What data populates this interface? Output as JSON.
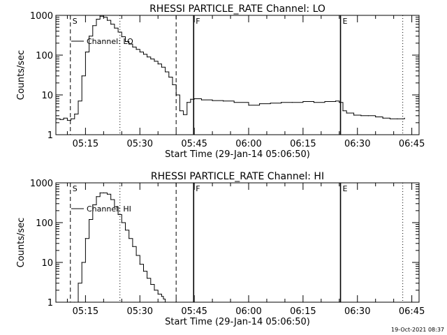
{
  "footer_timestamp": "19-Oct-2021 08:37",
  "chart_data": [
    {
      "type": "line",
      "title": "RHESSI PARTICLE_RATE Channel: LO",
      "xlabel": "Start Time (29-Jan-14 05:06:50)",
      "ylabel": "Counts/sec",
      "legend": "Channel: LO",
      "legend_position": "top-left",
      "y_scale": "log",
      "ylim": [
        1,
        1000
      ],
      "y_ticks": [
        1,
        10,
        100,
        1000
      ],
      "y_tick_labels": [
        "1",
        "10",
        "100",
        "1000"
      ],
      "xlim": [
        "05:06:50",
        "06:47:00"
      ],
      "x_ticks": [
        "05:15",
        "05:30",
        "05:45",
        "06:00",
        "06:15",
        "06:30",
        "06:45"
      ],
      "markers": [
        {
          "time": "05:10:50",
          "label": "S",
          "style": "dashed"
        },
        {
          "time": "05:24:30",
          "label": "",
          "style": "dotted"
        },
        {
          "time": "05:40:00",
          "label": "",
          "style": "dashed"
        },
        {
          "time": "05:44:50",
          "label": "F",
          "style": "solid"
        },
        {
          "time": "06:25:20",
          "label": "E",
          "style": "solid"
        },
        {
          "time": "06:42:30",
          "label": "",
          "style": "dotted"
        }
      ],
      "series": [
        {
          "name": "Channel: LO",
          "x": [
            "05:07:00",
            "05:08:00",
            "05:09:00",
            "05:10:00",
            "05:11:00",
            "05:12:00",
            "05:13:00",
            "05:14:00",
            "05:15:00",
            "05:16:00",
            "05:17:00",
            "05:18:00",
            "05:19:00",
            "05:20:00",
            "05:21:00",
            "05:22:00",
            "05:23:00",
            "05:24:00",
            "05:25:00",
            "05:26:00",
            "05:27:00",
            "05:28:00",
            "05:29:00",
            "05:30:00",
            "05:31:00",
            "05:32:00",
            "05:33:00",
            "05:34:00",
            "05:35:00",
            "05:36:00",
            "05:37:00",
            "05:38:00",
            "05:39:00",
            "05:40:00",
            "05:41:00",
            "05:42:00",
            "05:43:00",
            "05:44:00",
            "05:45:00",
            "05:47:00",
            "05:50:00",
            "05:53:00",
            "05:56:00",
            "06:00:00",
            "06:03:00",
            "06:06:00",
            "06:09:00",
            "06:12:00",
            "06:15:00",
            "06:18:00",
            "06:21:00",
            "06:24:00",
            "06:25:00",
            "06:26:00",
            "06:27:00",
            "06:29:00",
            "06:31:00",
            "06:33:00",
            "06:35:00",
            "06:37:00",
            "06:39:00",
            "06:41:00",
            "06:43:00"
          ],
          "y": [
            2.5,
            2.4,
            2.6,
            2.3,
            2.5,
            3.3,
            7,
            30,
            120,
            300,
            550,
            800,
            950,
            900,
            750,
            600,
            480,
            380,
            290,
            220,
            190,
            160,
            140,
            120,
            105,
            90,
            80,
            70,
            60,
            50,
            38,
            28,
            18,
            10,
            4,
            3.2,
            6.5,
            7.8,
            8,
            7.5,
            7.2,
            7,
            6.5,
            5.5,
            6,
            6.2,
            6.5,
            6.5,
            6.8,
            6.5,
            6.8,
            7,
            6.5,
            4,
            3.5,
            3.1,
            3,
            3,
            2.8,
            2.6,
            2.5,
            2.5,
            2.6
          ]
        }
      ]
    },
    {
      "type": "line",
      "title": "RHESSI PARTICLE_RATE Channel: HI",
      "xlabel": "Start Time (29-Jan-14 05:06:50)",
      "ylabel": "Counts/sec",
      "legend": "Channel: HI",
      "legend_position": "top-left",
      "y_scale": "log",
      "ylim": [
        1,
        1000
      ],
      "y_ticks": [
        1,
        10,
        100,
        1000
      ],
      "y_tick_labels": [
        "1",
        "10",
        "100",
        "1000"
      ],
      "xlim": [
        "05:06:50",
        "06:47:00"
      ],
      "x_ticks": [
        "05:15",
        "05:30",
        "05:45",
        "06:00",
        "06:15",
        "06:30",
        "06:45"
      ],
      "markers": [
        {
          "time": "05:10:50",
          "label": "S",
          "style": "dashed"
        },
        {
          "time": "05:24:30",
          "label": "",
          "style": "dotted"
        },
        {
          "time": "05:40:00",
          "label": "",
          "style": "dashed"
        },
        {
          "time": "05:44:50",
          "label": "F",
          "style": "solid"
        },
        {
          "time": "06:25:20",
          "label": "E",
          "style": "solid"
        },
        {
          "time": "06:42:30",
          "label": "",
          "style": "dotted"
        }
      ],
      "series": [
        {
          "name": "Channel: HI",
          "x": [
            "05:12:00",
            "05:13:00",
            "05:14:00",
            "05:15:00",
            "05:16:00",
            "05:17:00",
            "05:18:00",
            "05:19:00",
            "05:20:00",
            "05:21:00",
            "05:22:00",
            "05:23:00",
            "05:24:00",
            "05:25:00",
            "05:26:00",
            "05:27:00",
            "05:28:00",
            "05:29:00",
            "05:30:00",
            "05:31:00",
            "05:32:00",
            "05:33:00",
            "05:34:00",
            "05:35:00",
            "05:36:00",
            "05:36:30",
            "05:37:00"
          ],
          "y": [
            1,
            3,
            10,
            40,
            120,
            280,
            450,
            560,
            560,
            520,
            380,
            250,
            160,
            100,
            65,
            40,
            25,
            15,
            9,
            6,
            4,
            2.8,
            2,
            1.6,
            1.4,
            1.2,
            1
          ]
        }
      ]
    }
  ]
}
